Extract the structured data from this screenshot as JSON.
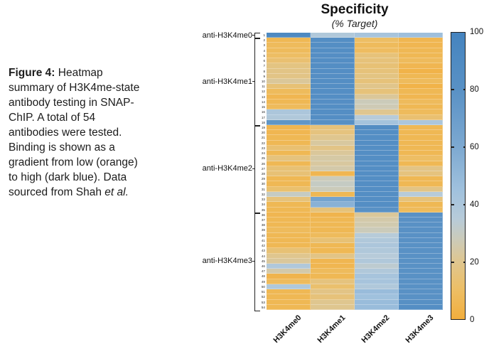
{
  "caption": {
    "bold": "Figure 4:",
    "body": " Heatmap summary of H3K4me-state antibody testing in SNAP-ChIP. A total of 54 antibodies were tested. Binding is shown as a gradient from low (orange) to high (dark blue). Data sourced from Shah ",
    "italic": "et al."
  },
  "chart_data": {
    "type": "heatmap",
    "title": "Specificity",
    "subtitle": "(% Target)",
    "value_meaning": "specificity percent of target, 0-100",
    "columns": [
      "H3K4me0",
      "H3K4me1",
      "H3K4me2",
      "H3K4me3"
    ],
    "row_groups": [
      {
        "label": "anti-H3K4me0",
        "first_row": 1,
        "last_row": 1
      },
      {
        "label": "anti-H3K4me1",
        "first_row": 2,
        "last_row": 18
      },
      {
        "label": "anti-H3K4me2",
        "first_row": 19,
        "last_row": 35
      },
      {
        "label": "anti-H3K4me3",
        "first_row": 36,
        "last_row": 54
      }
    ],
    "rows": [
      {
        "n": 1,
        "values": [
          92,
          38,
          42,
          46
        ]
      },
      {
        "n": 2,
        "values": [
          6,
          85,
          10,
          5
        ]
      },
      {
        "n": 3,
        "values": [
          8,
          85,
          8,
          5
        ]
      },
      {
        "n": 4,
        "values": [
          8,
          85,
          9,
          6
        ]
      },
      {
        "n": 5,
        "values": [
          10,
          84,
          15,
          6
        ]
      },
      {
        "n": 6,
        "values": [
          13,
          85,
          15,
          8
        ]
      },
      {
        "n": 7,
        "values": [
          17,
          85,
          14,
          5
        ]
      },
      {
        "n": 8,
        "values": [
          18,
          85,
          15,
          3
        ]
      },
      {
        "n": 9,
        "values": [
          18,
          84,
          17,
          6
        ]
      },
      {
        "n": 10,
        "values": [
          22,
          85,
          15,
          8
        ]
      },
      {
        "n": 11,
        "values": [
          14,
          85,
          19,
          3
        ]
      },
      {
        "n": 12,
        "values": [
          8,
          85,
          15,
          6
        ]
      },
      {
        "n": 13,
        "values": [
          5,
          85,
          22,
          5
        ]
      },
      {
        "n": 14,
        "values": [
          6,
          84,
          28,
          8
        ]
      },
      {
        "n": 15,
        "values": [
          8,
          85,
          27,
          6
        ]
      },
      {
        "n": 16,
        "values": [
          40,
          85,
          20,
          8
        ]
      },
      {
        "n": 17,
        "values": [
          38,
          85,
          35,
          13
        ]
      },
      {
        "n": 18,
        "values": [
          76,
          82,
          43,
          40
        ]
      },
      {
        "n": 19,
        "values": [
          5,
          15,
          86,
          6
        ]
      },
      {
        "n": 20,
        "values": [
          5,
          16,
          85,
          6
        ]
      },
      {
        "n": 21,
        "values": [
          6,
          20,
          85,
          6
        ]
      },
      {
        "n": 22,
        "values": [
          6,
          23,
          85,
          6
        ]
      },
      {
        "n": 23,
        "values": [
          13,
          18,
          85,
          6
        ]
      },
      {
        "n": 24,
        "values": [
          6,
          22,
          85,
          6
        ]
      },
      {
        "n": 25,
        "values": [
          16,
          24,
          85,
          10
        ]
      },
      {
        "n": 26,
        "values": [
          6,
          23,
          85,
          6
        ]
      },
      {
        "n": 27,
        "values": [
          14,
          25,
          85,
          18
        ]
      },
      {
        "n": 28,
        "values": [
          14,
          5,
          85,
          16
        ]
      },
      {
        "n": 29,
        "values": [
          6,
          28,
          85,
          6
        ]
      },
      {
        "n": 30,
        "values": [
          6,
          30,
          85,
          6
        ]
      },
      {
        "n": 31,
        "values": [
          12,
          28,
          85,
          18
        ]
      },
      {
        "n": 32,
        "values": [
          30,
          6,
          85,
          35
        ]
      },
      {
        "n": 33,
        "values": [
          15,
          65,
          85,
          15
        ]
      },
      {
        "n": 34,
        "values": [
          6,
          55,
          85,
          6
        ]
      },
      {
        "n": 35,
        "values": [
          6,
          15,
          80,
          8
        ]
      },
      {
        "n": 36,
        "values": [
          5,
          4,
          22,
          80
        ]
      },
      {
        "n": 37,
        "values": [
          6,
          6,
          25,
          80
        ]
      },
      {
        "n": 38,
        "values": [
          6,
          6,
          26,
          80
        ]
      },
      {
        "n": 39,
        "values": [
          8,
          6,
          28,
          80
        ]
      },
      {
        "n": 40,
        "values": [
          6,
          8,
          35,
          80
        ]
      },
      {
        "n": 41,
        "values": [
          6,
          14,
          38,
          80
        ]
      },
      {
        "n": 42,
        "values": [
          6,
          6,
          40,
          80
        ]
      },
      {
        "n": 43,
        "values": [
          14,
          6,
          38,
          80
        ]
      },
      {
        "n": 44,
        "values": [
          20,
          18,
          35,
          80
        ]
      },
      {
        "n": 45,
        "values": [
          22,
          5,
          38,
          80
        ]
      },
      {
        "n": 46,
        "values": [
          38,
          5,
          33,
          80
        ]
      },
      {
        "n": 47,
        "values": [
          25,
          8,
          38,
          80
        ]
      },
      {
        "n": 48,
        "values": [
          4,
          6,
          42,
          80
        ]
      },
      {
        "n": 49,
        "values": [
          8,
          16,
          42,
          80
        ]
      },
      {
        "n": 50,
        "values": [
          38,
          12,
          38,
          80
        ]
      },
      {
        "n": 51,
        "values": [
          6,
          18,
          48,
          80
        ]
      },
      {
        "n": 52,
        "values": [
          6,
          15,
          45,
          80
        ]
      },
      {
        "n": 53,
        "values": [
          6,
          20,
          48,
          82
        ]
      },
      {
        "n": 54,
        "values": [
          6,
          20,
          48,
          85
        ]
      }
    ],
    "colorbar": {
      "min": 0,
      "max": 100,
      "tick_labels": [
        "100",
        "80",
        "60",
        "40",
        "20",
        "0"
      ],
      "tick_values": [
        100,
        80,
        60,
        40,
        20,
        0
      ],
      "low_color": "#F2AE3D",
      "high_color": "#4584BF",
      "gradient_stops": [
        {
          "v": 0,
          "c": "#F2AE3D"
        },
        {
          "v": 10,
          "c": "#EDBE64"
        },
        {
          "v": 20,
          "c": "#DFC68F"
        },
        {
          "v": 28,
          "c": "#CBCBBA"
        },
        {
          "v": 35,
          "c": "#B7CBD9"
        },
        {
          "v": 45,
          "c": "#A0C1DD"
        },
        {
          "v": 60,
          "c": "#7DA9D1"
        },
        {
          "v": 80,
          "c": "#5991C5"
        },
        {
          "v": 100,
          "c": "#4584BF"
        }
      ]
    }
  }
}
